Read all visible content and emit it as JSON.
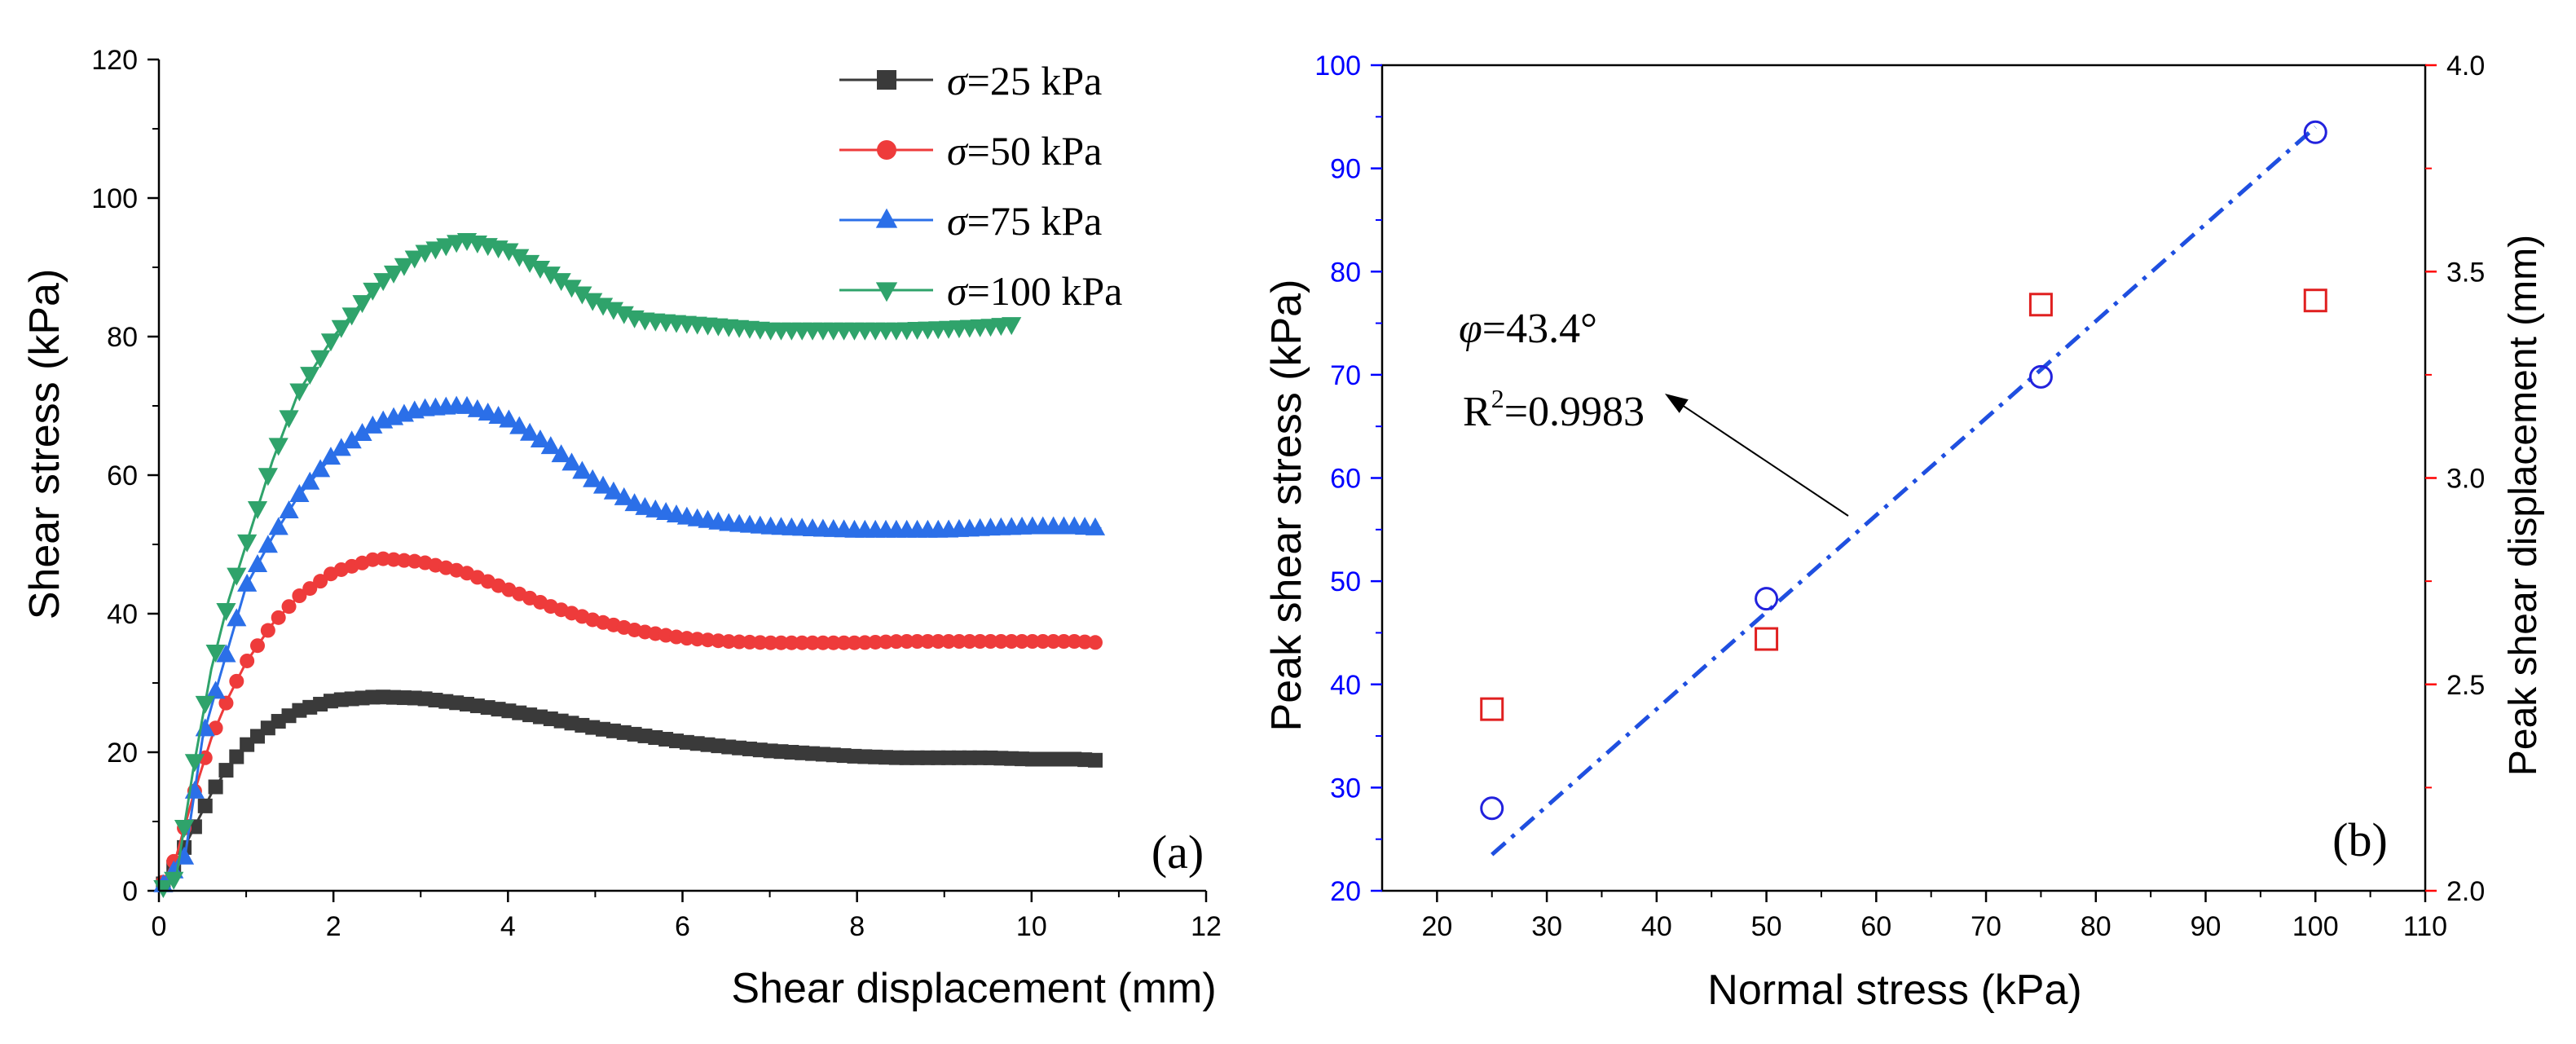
{
  "colors": {
    "black": "#000000",
    "gray_series": "#3a3a3a",
    "red_series": "#ee3b3b",
    "blue_series": "#2b6fe8",
    "green_series": "#2fa36b",
    "blue_axis": "#0000ff",
    "red_axis": "#ff0000",
    "fit_line": "#1f4fe0",
    "circle_marker": "#2222dd",
    "square_marker": "#e02020"
  },
  "chart_data": [
    {
      "type": "line",
      "panel_label": "(a)",
      "xlabel": "Shear displacement (mm)",
      "ylabel": "Shear stress (kPa)",
      "xlim": [
        0,
        12
      ],
      "ylim": [
        0,
        120
      ],
      "xticks": [
        0,
        2,
        4,
        6,
        8,
        10,
        12
      ],
      "yticks": [
        0,
        20,
        40,
        60,
        80,
        100,
        120
      ],
      "legend_position": "top-right",
      "series": [
        {
          "name": "σ=25 kPa",
          "legend_sigma": "σ",
          "legend_rest": "=25 kPa",
          "marker": "square",
          "points": [
            [
              0,
              0
            ],
            [
              0.2,
              4
            ],
            [
              0.4,
              9
            ],
            [
              0.6,
              14
            ],
            [
              0.8,
              18
            ],
            [
              1.0,
              21
            ],
            [
              1.3,
              24
            ],
            [
              1.6,
              26
            ],
            [
              2.0,
              27.5
            ],
            [
              2.5,
              28
            ],
            [
              3.0,
              27.8
            ],
            [
              3.5,
              27
            ],
            [
              4.0,
              26
            ],
            [
              4.5,
              24.8
            ],
            [
              5.0,
              23.5
            ],
            [
              5.5,
              22.5
            ],
            [
              6.0,
              21.5
            ],
            [
              6.5,
              20.8
            ],
            [
              7.0,
              20.2
            ],
            [
              7.5,
              19.8
            ],
            [
              8.0,
              19.4
            ],
            [
              8.5,
              19.2
            ],
            [
              9.0,
              19.2
            ],
            [
              9.5,
              19.2
            ],
            [
              10.0,
              19
            ],
            [
              10.5,
              19
            ],
            [
              10.8,
              18.8
            ]
          ]
        },
        {
          "name": "σ=50 kPa",
          "legend_sigma": "σ",
          "legend_rest": "=50 kPa",
          "marker": "circle",
          "points": [
            [
              0,
              0
            ],
            [
              0.2,
              5
            ],
            [
              0.4,
              14
            ],
            [
              0.6,
              22
            ],
            [
              0.8,
              28
            ],
            [
              1.0,
              33
            ],
            [
              1.3,
              38.5
            ],
            [
              1.6,
              42.5
            ],
            [
              2.0,
              46
            ],
            [
              2.5,
              48
            ],
            [
              3.0,
              47.5
            ],
            [
              3.5,
              46
            ],
            [
              4.0,
              43.5
            ],
            [
              4.5,
              41
            ],
            [
              5.0,
              39
            ],
            [
              5.5,
              37.5
            ],
            [
              6.0,
              36.5
            ],
            [
              6.5,
              36
            ],
            [
              7.0,
              35.8
            ],
            [
              7.5,
              35.8
            ],
            [
              8.0,
              35.8
            ],
            [
              8.5,
              36
            ],
            [
              9.0,
              36
            ],
            [
              9.5,
              36
            ],
            [
              10.0,
              36
            ],
            [
              10.5,
              36
            ],
            [
              10.8,
              35.8
            ]
          ]
        },
        {
          "name": "σ=75 kPa",
          "legend_sigma": "σ",
          "legend_rest": "=75 kPa",
          "marker": "triangle-up",
          "points": [
            [
              0,
              0
            ],
            [
              0.3,
              5
            ],
            [
              0.5,
              22
            ],
            [
              0.7,
              31
            ],
            [
              1.0,
              44
            ],
            [
              1.3,
              51
            ],
            [
              1.6,
              57
            ],
            [
              2.0,
              63
            ],
            [
              2.5,
              67.5
            ],
            [
              3.0,
              69.5
            ],
            [
              3.5,
              70
            ],
            [
              4.0,
              68
            ],
            [
              4.5,
              64
            ],
            [
              5.0,
              59
            ],
            [
              5.5,
              55.5
            ],
            [
              6.0,
              54
            ],
            [
              6.5,
              53
            ],
            [
              7.0,
              52.5
            ],
            [
              7.5,
              52.2
            ],
            [
              8.0,
              52
            ],
            [
              8.5,
              52
            ],
            [
              9.0,
              52
            ],
            [
              9.5,
              52.3
            ],
            [
              10.0,
              52.5
            ],
            [
              10.5,
              52.5
            ],
            [
              10.8,
              52.3
            ]
          ]
        },
        {
          "name": "σ=100 kPa",
          "legend_sigma": "σ",
          "legend_rest": "=100 kPa",
          "marker": "triangle-down",
          "points": [
            [
              0,
              0
            ],
            [
              0.2,
              2
            ],
            [
              0.4,
              18
            ],
            [
              0.6,
              32
            ],
            [
              0.8,
              42
            ],
            [
              1.0,
              50
            ],
            [
              1.3,
              62
            ],
            [
              1.6,
              72
            ],
            [
              2.0,
              80
            ],
            [
              2.5,
              87.5
            ],
            [
              3.0,
              92
            ],
            [
              3.5,
              94
            ],
            [
              4.0,
              92.5
            ],
            [
              4.5,
              89
            ],
            [
              5.0,
              85
            ],
            [
              5.5,
              82.5
            ],
            [
              6.0,
              82
            ],
            [
              6.5,
              81.5
            ],
            [
              7.0,
              81
            ],
            [
              7.5,
              81
            ],
            [
              8.0,
              81
            ],
            [
              8.5,
              81
            ],
            [
              9.0,
              81.2
            ],
            [
              9.5,
              81.5
            ],
            [
              9.8,
              81.8
            ]
          ]
        }
      ]
    },
    {
      "type": "scatter",
      "panel_label": "(b)",
      "xlabel": "Normal stress (kPa)",
      "ylabel_left": "Peak shear stress (kPa)",
      "ylabel_right": "Peak shear displacement (mm)",
      "xlim": [
        15,
        110
      ],
      "ylim_left": [
        20,
        100
      ],
      "ylim_right": [
        2.0,
        4.0
      ],
      "xticks": [
        20,
        30,
        40,
        50,
        60,
        70,
        80,
        90,
        100,
        110
      ],
      "yticks_left": [
        20,
        30,
        40,
        50,
        60,
        70,
        80,
        90,
        100
      ],
      "yticks_right": [
        "2.0",
        "2.5",
        "3.0",
        "3.5",
        "4.0"
      ],
      "series": [
        {
          "name": "Peak shear stress",
          "axis": "left",
          "marker": "circle-open",
          "x": [
            25,
            50,
            75,
            100
          ],
          "y": [
            28,
            48.3,
            69.8,
            93.5
          ]
        },
        {
          "name": "Peak shear displacement",
          "axis": "right",
          "marker": "square-open",
          "x": [
            25,
            50,
            75,
            100
          ],
          "y": [
            2.44,
            2.61,
            3.42,
            3.43
          ]
        }
      ],
      "fit_line": {
        "axis": "left",
        "x": [
          25,
          100
        ],
        "y": [
          23.5,
          94
        ]
      },
      "annotation": {
        "phi_symbol": "φ",
        "phi_text": "=43.4°",
        "r2_base": "R",
        "r2_exp": "2",
        "r2_text": "=0.9983",
        "arrow_target": [
          41,
          68
        ]
      }
    }
  ]
}
